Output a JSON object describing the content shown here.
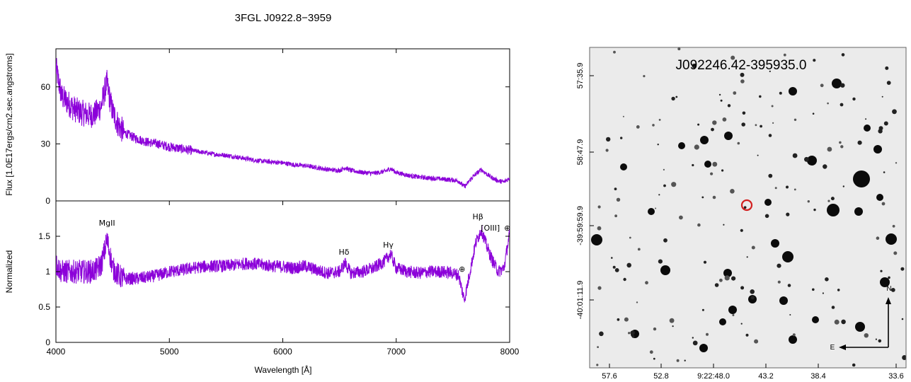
{
  "chart_data": [
    {
      "type": "line",
      "title": "3FGL J0922.8−3959",
      "xlabel": "Wavelength [Å]",
      "xlim": [
        4000,
        8000
      ],
      "xticks": [
        4000,
        5000,
        6000,
        7000,
        8000
      ],
      "panels": [
        {
          "name": "flux",
          "ylabel": "Flux [1.0E17ergs/cm2.sec.angstroms]",
          "ylim": [
            0,
            80
          ],
          "yticks": [
            0,
            30,
            60
          ],
          "color": "#8b00d9",
          "series": [
            {
              "x": [
                4000,
                4050,
                4100,
                4150,
                4200,
                4250,
                4300,
                4350,
                4400,
                4430,
                4450,
                4470,
                4500,
                4550,
                4600,
                4700,
                4800,
                4900,
                5000,
                5100,
                5200,
                5300,
                5400,
                5500,
                5600,
                5700,
                5800,
                5900,
                6000,
                6100,
                6200,
                6300,
                6400,
                6500,
                6550,
                6600,
                6700,
                6800,
                6900,
                6950,
                7000,
                7100,
                7200,
                7300,
                7400,
                7500,
                7550,
                7600,
                7620,
                7650,
                7700,
                7750,
                7800,
                7850,
                7900,
                7950,
                8000
              ],
              "y": [
                70,
                55,
                52,
                49,
                47,
                46,
                45,
                46,
                50,
                58,
                62,
                55,
                47,
                40,
                36,
                33,
                31,
                30,
                28.5,
                27.5,
                26.5,
                25.5,
                24.5,
                24,
                23,
                22,
                21,
                20.5,
                20,
                19,
                18.5,
                17.5,
                16.5,
                16,
                17.5,
                16,
                15,
                14.5,
                15.5,
                17,
                15,
                13.5,
                12.5,
                12,
                11.5,
                11,
                10.5,
                7.5,
                8.5,
                11,
                14,
                16.5,
                14,
                12,
                10.5,
                10,
                12
              ]
            }
          ]
        },
        {
          "name": "normalized",
          "ylabel": "Normalized",
          "ylim": [
            0,
            2
          ],
          "yticks": [
            0,
            0.5,
            1,
            1.5
          ],
          "color": "#8b00d9",
          "series": [
            {
              "x": [
                4000,
                4050,
                4100,
                4150,
                4200,
                4250,
                4300,
                4350,
                4400,
                4430,
                4450,
                4470,
                4500,
                4550,
                4600,
                4700,
                4800,
                4900,
                5000,
                5100,
                5200,
                5300,
                5400,
                5500,
                5600,
                5700,
                5800,
                5900,
                6000,
                6100,
                6200,
                6300,
                6400,
                6500,
                6550,
                6600,
                6700,
                6800,
                6900,
                6950,
                7000,
                7100,
                7200,
                7300,
                7400,
                7500,
                7550,
                7600,
                7620,
                7650,
                7700,
                7750,
                7800,
                7850,
                7900,
                7950,
                8000
              ],
              "y": [
                1.1,
                1.0,
                1.0,
                1.0,
                1.0,
                1.0,
                1.0,
                1.02,
                1.1,
                1.3,
                1.45,
                1.3,
                1.05,
                0.95,
                0.9,
                0.9,
                0.92,
                0.95,
                1.0,
                1.02,
                1.05,
                1.07,
                1.08,
                1.08,
                1.1,
                1.12,
                1.1,
                1.08,
                1.07,
                1.05,
                1.08,
                1.02,
                0.98,
                1.0,
                1.12,
                0.98,
                1.0,
                1.05,
                1.15,
                1.25,
                1.05,
                1.0,
                0.98,
                1.0,
                1.0,
                0.98,
                0.95,
                0.6,
                0.75,
                1.0,
                1.4,
                1.6,
                1.35,
                1.15,
                1.0,
                1.05,
                1.55
              ]
            }
          ],
          "annotations": [
            {
              "text": "MgII",
              "x": 4450,
              "y": 1.65
            },
            {
              "text": "Hδ",
              "x": 6540,
              "y": 1.24
            },
            {
              "text": "Hγ",
              "x": 6930,
              "y": 1.34
            },
            {
              "text": "⊕",
              "x": 7580,
              "y": 1.0
            },
            {
              "text": "Hβ",
              "x": 7720,
              "y": 1.74
            },
            {
              "text": "[OIII]",
              "x": 7830,
              "y": 1.58
            },
            {
              "text": "⊕",
              "x": 7980,
              "y": 1.58
            }
          ]
        }
      ]
    },
    {
      "type": "scatter",
      "title": "J092246.42-395935.0",
      "xticks": [
        "57.6",
        "52.8",
        "9:22:48.0",
        "43.2",
        "38.4",
        "33.6"
      ],
      "yticks": [
        "57:35.9",
        "58:47.9",
        "-39:59:59.9",
        "-40:01:11.9"
      ],
      "compass": {
        "north": "N",
        "east": "E"
      },
      "target_color": "#d22020"
    }
  ]
}
